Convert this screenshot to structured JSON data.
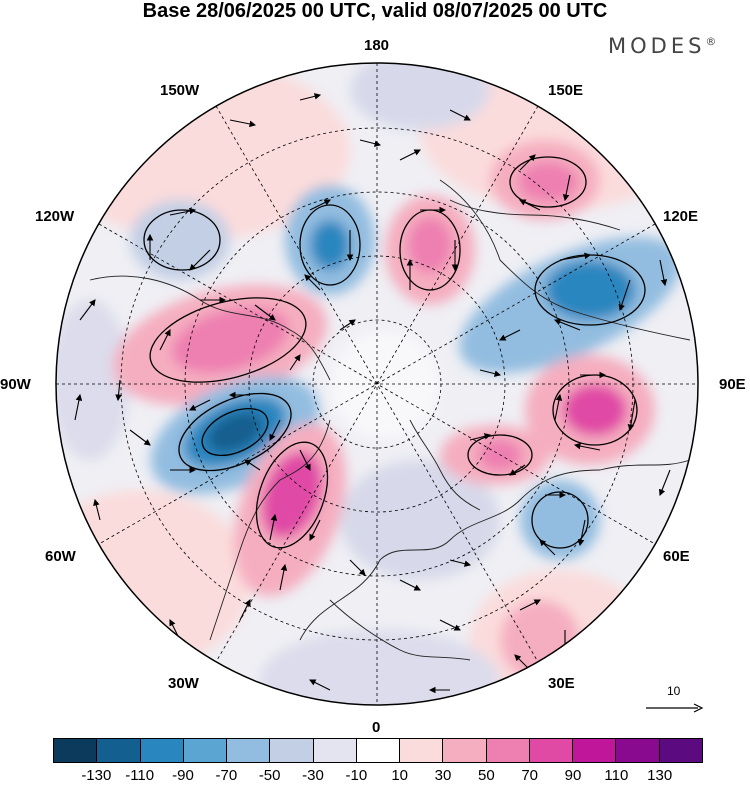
{
  "title": "Base 28/06/2025 00 UTC, valid 08/07/2025 00 UTC",
  "brand": "MODES",
  "brand_mark": "®",
  "longitude_labels": {
    "lon_180": "180",
    "lon_150e": "150E",
    "lon_120e": "120E",
    "lon_90e": "90E",
    "lon_60e": "60E",
    "lon_30e": "30E",
    "lon_0": "0",
    "lon_30w": "30W",
    "lon_60w": "60W",
    "lon_90w": "90W",
    "lon_120w": "120W",
    "lon_150w": "150W"
  },
  "reference_vector": "10",
  "colorbar": {
    "colors": [
      "#0b3a5c",
      "#135f8f",
      "#2a86bf",
      "#5aa5d2",
      "#93bde0",
      "#c3cfe5",
      "#e4e3f0",
      "#ffffff",
      "#fbdcdc",
      "#f5aec0",
      "#ee7fb1",
      "#e04aa5",
      "#c0179a",
      "#8a0a8f",
      "#5c0a80"
    ],
    "tick_labels": [
      "-130",
      "-110",
      "-90",
      "-70",
      "-50",
      "-30",
      "-10",
      "10",
      "30",
      "50",
      "70",
      "90",
      "110",
      "130"
    ]
  },
  "anomaly_centers": [
    {
      "name": "low-w-atlantic",
      "sign": "negative",
      "magnitude": 110
    },
    {
      "name": "high-n-atlantic",
      "sign": "positive",
      "magnitude": 90
    },
    {
      "name": "high-central-canada",
      "sign": "positive",
      "magnitude": 70
    },
    {
      "name": "low-alaska-gulf",
      "sign": "negative",
      "magnitude": 50
    },
    {
      "name": "low-bering",
      "sign": "negative",
      "magnitude": 70
    },
    {
      "name": "high-e-siberia",
      "sign": "positive",
      "magnitude": 60
    },
    {
      "name": "high-chukotka",
      "sign": "positive",
      "magnitude": 70
    },
    {
      "name": "low-yakutia",
      "sign": "negative",
      "magnitude": 90
    },
    {
      "name": "high-w-siberia",
      "sign": "positive",
      "magnitude": 80
    },
    {
      "name": "high-urals",
      "sign": "positive",
      "magnitude": 50
    },
    {
      "name": "low-caspian",
      "sign": "negative",
      "magnitude": 50
    },
    {
      "name": "high-e-europe",
      "sign": "positive",
      "magnitude": 50
    },
    {
      "name": "high-e-pacific",
      "sign": "positive",
      "magnitude": 30
    }
  ]
}
